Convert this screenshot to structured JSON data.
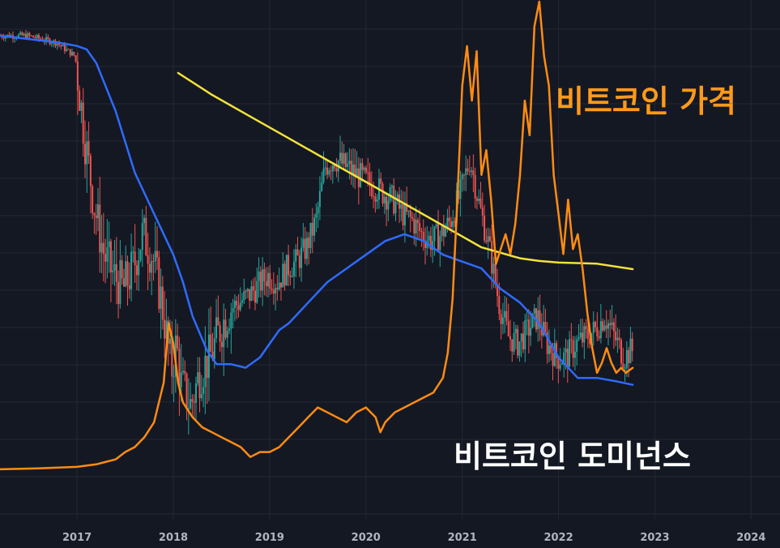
{
  "chart_data": {
    "type": "line",
    "xlim": [
      2016.2,
      2024.3
    ],
    "x_ticks": [
      "2017",
      "2018",
      "2019",
      "2020",
      "2021",
      "2022",
      "2023",
      "2024"
    ],
    "x_tick_values": [
      2017,
      2018,
      2019,
      2020,
      2021,
      2022,
      2023,
      2024
    ],
    "grid": true,
    "colors": {
      "background": "#141823",
      "grid": "#232834",
      "candle_up": "#26a69a",
      "candle_down": "#ef5350",
      "price": "#ff8c12",
      "dominance_ma": "#2f6bff",
      "trend": "#f2e23a",
      "annotation_price": "#ff9a1a",
      "annotation_dominance": "#ffffff"
    },
    "annotations": [
      {
        "id": "price",
        "text": "비트코인 가격"
      },
      {
        "id": "dominance",
        "text": "비트코인 도미넌스"
      }
    ],
    "series": [
      {
        "id": "dominance",
        "type": "candles",
        "x": [
          2016.2,
          2016.5,
          2016.8,
          2017.0,
          2017.1,
          2017.2,
          2017.3,
          2017.4,
          2017.5,
          2017.6,
          2017.7,
          2017.8,
          2017.9,
          2018.0,
          2018.05,
          2018.1,
          2018.2,
          2018.3,
          2018.4,
          2018.5,
          2018.6,
          2018.8,
          2019.0,
          2019.1,
          2019.2,
          2019.3,
          2019.4,
          2019.5,
          2019.6,
          2019.7,
          2019.8,
          2019.9,
          2020.0,
          2020.1,
          2020.2,
          2020.3,
          2020.4,
          2020.5,
          2020.6,
          2020.7,
          2020.8,
          2020.9,
          2021.0,
          2021.1,
          2021.2,
          2021.3,
          2021.4,
          2021.5,
          2021.6,
          2021.7,
          2021.8,
          2021.9,
          2022.0,
          2022.1,
          2022.2,
          2022.3,
          2022.4,
          2022.5,
          2022.6,
          2022.7,
          2022.77
        ],
        "values": [
          87,
          87,
          86,
          84,
          72,
          62,
          55,
          52,
          50,
          53,
          58,
          55,
          48,
          38,
          42,
          36,
          33,
          38,
          40,
          44,
          47,
          49,
          52,
          51,
          53,
          54,
          56,
          60,
          68,
          69,
          68,
          67,
          66,
          65,
          64,
          63,
          61,
          60,
          58,
          57,
          58,
          60,
          64,
          69,
          62,
          56,
          48,
          43,
          42,
          44,
          46,
          42,
          40,
          40,
          42,
          43,
          44,
          46,
          43,
          40,
          41
        ]
      },
      {
        "id": "dominance_ma",
        "type": "line",
        "x": [
          2016.2,
          2016.8,
          2017.0,
          2017.1,
          2017.2,
          2017.4,
          2017.6,
          2017.8,
          2018.0,
          2018.1,
          2018.2,
          2018.35,
          2018.45,
          2018.6,
          2018.75,
          2018.9,
          2019.0,
          2019.1,
          2019.2,
          2019.4,
          2019.6,
          2019.8,
          2020.0,
          2020.2,
          2020.4,
          2020.6,
          2020.8,
          2021.0,
          2021.2,
          2021.4,
          2021.6,
          2021.8,
          2022.0,
          2022.2,
          2022.4,
          2022.6,
          2022.77
        ],
        "values": [
          87,
          86,
          85.5,
          85,
          83,
          76,
          67,
          61,
          55,
          51,
          46,
          41,
          39,
          39,
          38.5,
          40,
          42,
          44,
          45,
          48,
          51,
          53,
          55,
          57,
          58,
          57,
          55,
          54,
          53,
          50,
          48,
          45,
          40,
          37,
          37,
          36.5,
          36
        ]
      },
      {
        "id": "trend",
        "type": "line",
        "x": [
          2018.05,
          2018.4,
          2018.8,
          2019.2,
          2019.6,
          2020.0,
          2020.4,
          2020.8,
          2021.2,
          2021.6,
          2021.8,
          2022.0,
          2022.4,
          2022.77
        ],
        "values": [
          76,
          72,
          68,
          64,
          60,
          56,
          52,
          48,
          44,
          42,
          41.5,
          41.2,
          41,
          40
        ]
      },
      {
        "id": "price",
        "type": "line",
        "x": [
          2016.2,
          2016.6,
          2017.0,
          2017.2,
          2017.4,
          2017.5,
          2017.6,
          2017.7,
          2017.8,
          2017.9,
          2017.95,
          2018.0,
          2018.05,
          2018.1,
          2018.2,
          2018.3,
          2018.4,
          2018.5,
          2018.6,
          2018.7,
          2018.8,
          2018.9,
          2019.0,
          2019.1,
          2019.2,
          2019.3,
          2019.4,
          2019.5,
          2019.6,
          2019.7,
          2019.8,
          2019.9,
          2020.0,
          2020.1,
          2020.15,
          2020.2,
          2020.3,
          2020.4,
          2020.5,
          2020.6,
          2020.7,
          2020.8,
          2020.85,
          2020.9,
          2020.95,
          2021.0,
          2021.05,
          2021.1,
          2021.15,
          2021.2,
          2021.25,
          2021.3,
          2021.35,
          2021.4,
          2021.45,
          2021.5,
          2021.55,
          2021.6,
          2021.65,
          2021.7,
          2021.75,
          2021.8,
          2021.85,
          2021.9,
          2021.95,
          2022.0,
          2022.05,
          2022.1,
          2022.15,
          2022.2,
          2022.25,
          2022.3,
          2022.35,
          2022.4,
          2022.45,
          2022.5,
          2022.55,
          2022.6,
          2022.65,
          2022.7,
          2022.77
        ],
        "values": [
          0.5,
          0.7,
          1.0,
          1.5,
          2.5,
          4,
          5,
          7,
          10,
          18,
          30,
          26,
          18,
          14,
          11,
          9,
          8,
          7,
          6,
          5,
          3,
          4,
          4,
          5,
          7,
          9,
          11,
          13,
          12,
          11,
          10,
          12,
          13,
          11,
          8,
          10,
          12,
          13,
          14,
          15,
          16,
          19,
          24,
          35,
          55,
          78,
          86,
          75,
          85,
          60,
          65,
          55,
          42,
          45,
          48,
          44,
          50,
          60,
          75,
          68,
          90,
          95,
          84,
          78,
          60,
          52,
          44,
          55,
          45,
          48,
          41,
          32,
          25,
          20,
          22,
          25,
          22,
          20,
          21,
          20,
          21
        ]
      }
    ]
  }
}
